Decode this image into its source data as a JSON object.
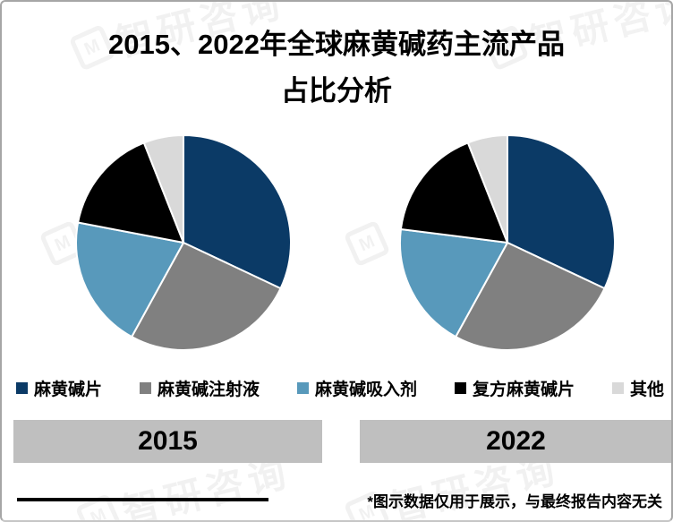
{
  "page": {
    "title_line1": "2015、2022年全球麻黄碱药主流产品",
    "title_line2": "占比分析",
    "footnote": "*图示数据仅用于展示，与最终报告内容无关",
    "watermark": "智研咨询",
    "watermark_logo_letter": "M"
  },
  "colors": {
    "navy": "#0b3a66",
    "gray": "#808080",
    "steel_blue": "#5899bb",
    "black": "#000000",
    "light_gray": "#d9d9d9",
    "year_bar_gray": "#bfbfbf",
    "border_gray": "#a6a6a6"
  },
  "legend": {
    "items": [
      {
        "label": "麻黄碱片",
        "color": "#0b3a66"
      },
      {
        "label": "麻黄碱注射液",
        "color": "#808080"
      },
      {
        "label": "麻黄碱吸入剂",
        "color": "#5899bb"
      },
      {
        "label": "复方麻黄碱片",
        "color": "#000000"
      },
      {
        "label": "其他",
        "color": "#d9d9d9"
      }
    ]
  },
  "chart_data": [
    {
      "type": "pie",
      "title": "2015",
      "labels": [
        "麻黄碱片",
        "麻黄碱注射液",
        "麻黄碱吸入剂",
        "复方麻黄碱片",
        "其他"
      ],
      "values": [
        32,
        26,
        20,
        16,
        6
      ],
      "unit": "percent",
      "colors": [
        "#0b3a66",
        "#808080",
        "#5899bb",
        "#000000",
        "#d9d9d9"
      ],
      "start_angle_deg": 0,
      "direction": "clockwise",
      "legend_position": "bottom"
    },
    {
      "type": "pie",
      "title": "2022",
      "labels": [
        "麻黄碱片",
        "麻黄碱注射液",
        "麻黄碱吸入剂",
        "复方麻黄碱片",
        "其他"
      ],
      "values": [
        32,
        26,
        19,
        17,
        6
      ],
      "unit": "percent",
      "colors": [
        "#0b3a66",
        "#808080",
        "#5899bb",
        "#000000",
        "#d9d9d9"
      ],
      "start_angle_deg": 0,
      "direction": "clockwise",
      "legend_position": "bottom"
    }
  ]
}
